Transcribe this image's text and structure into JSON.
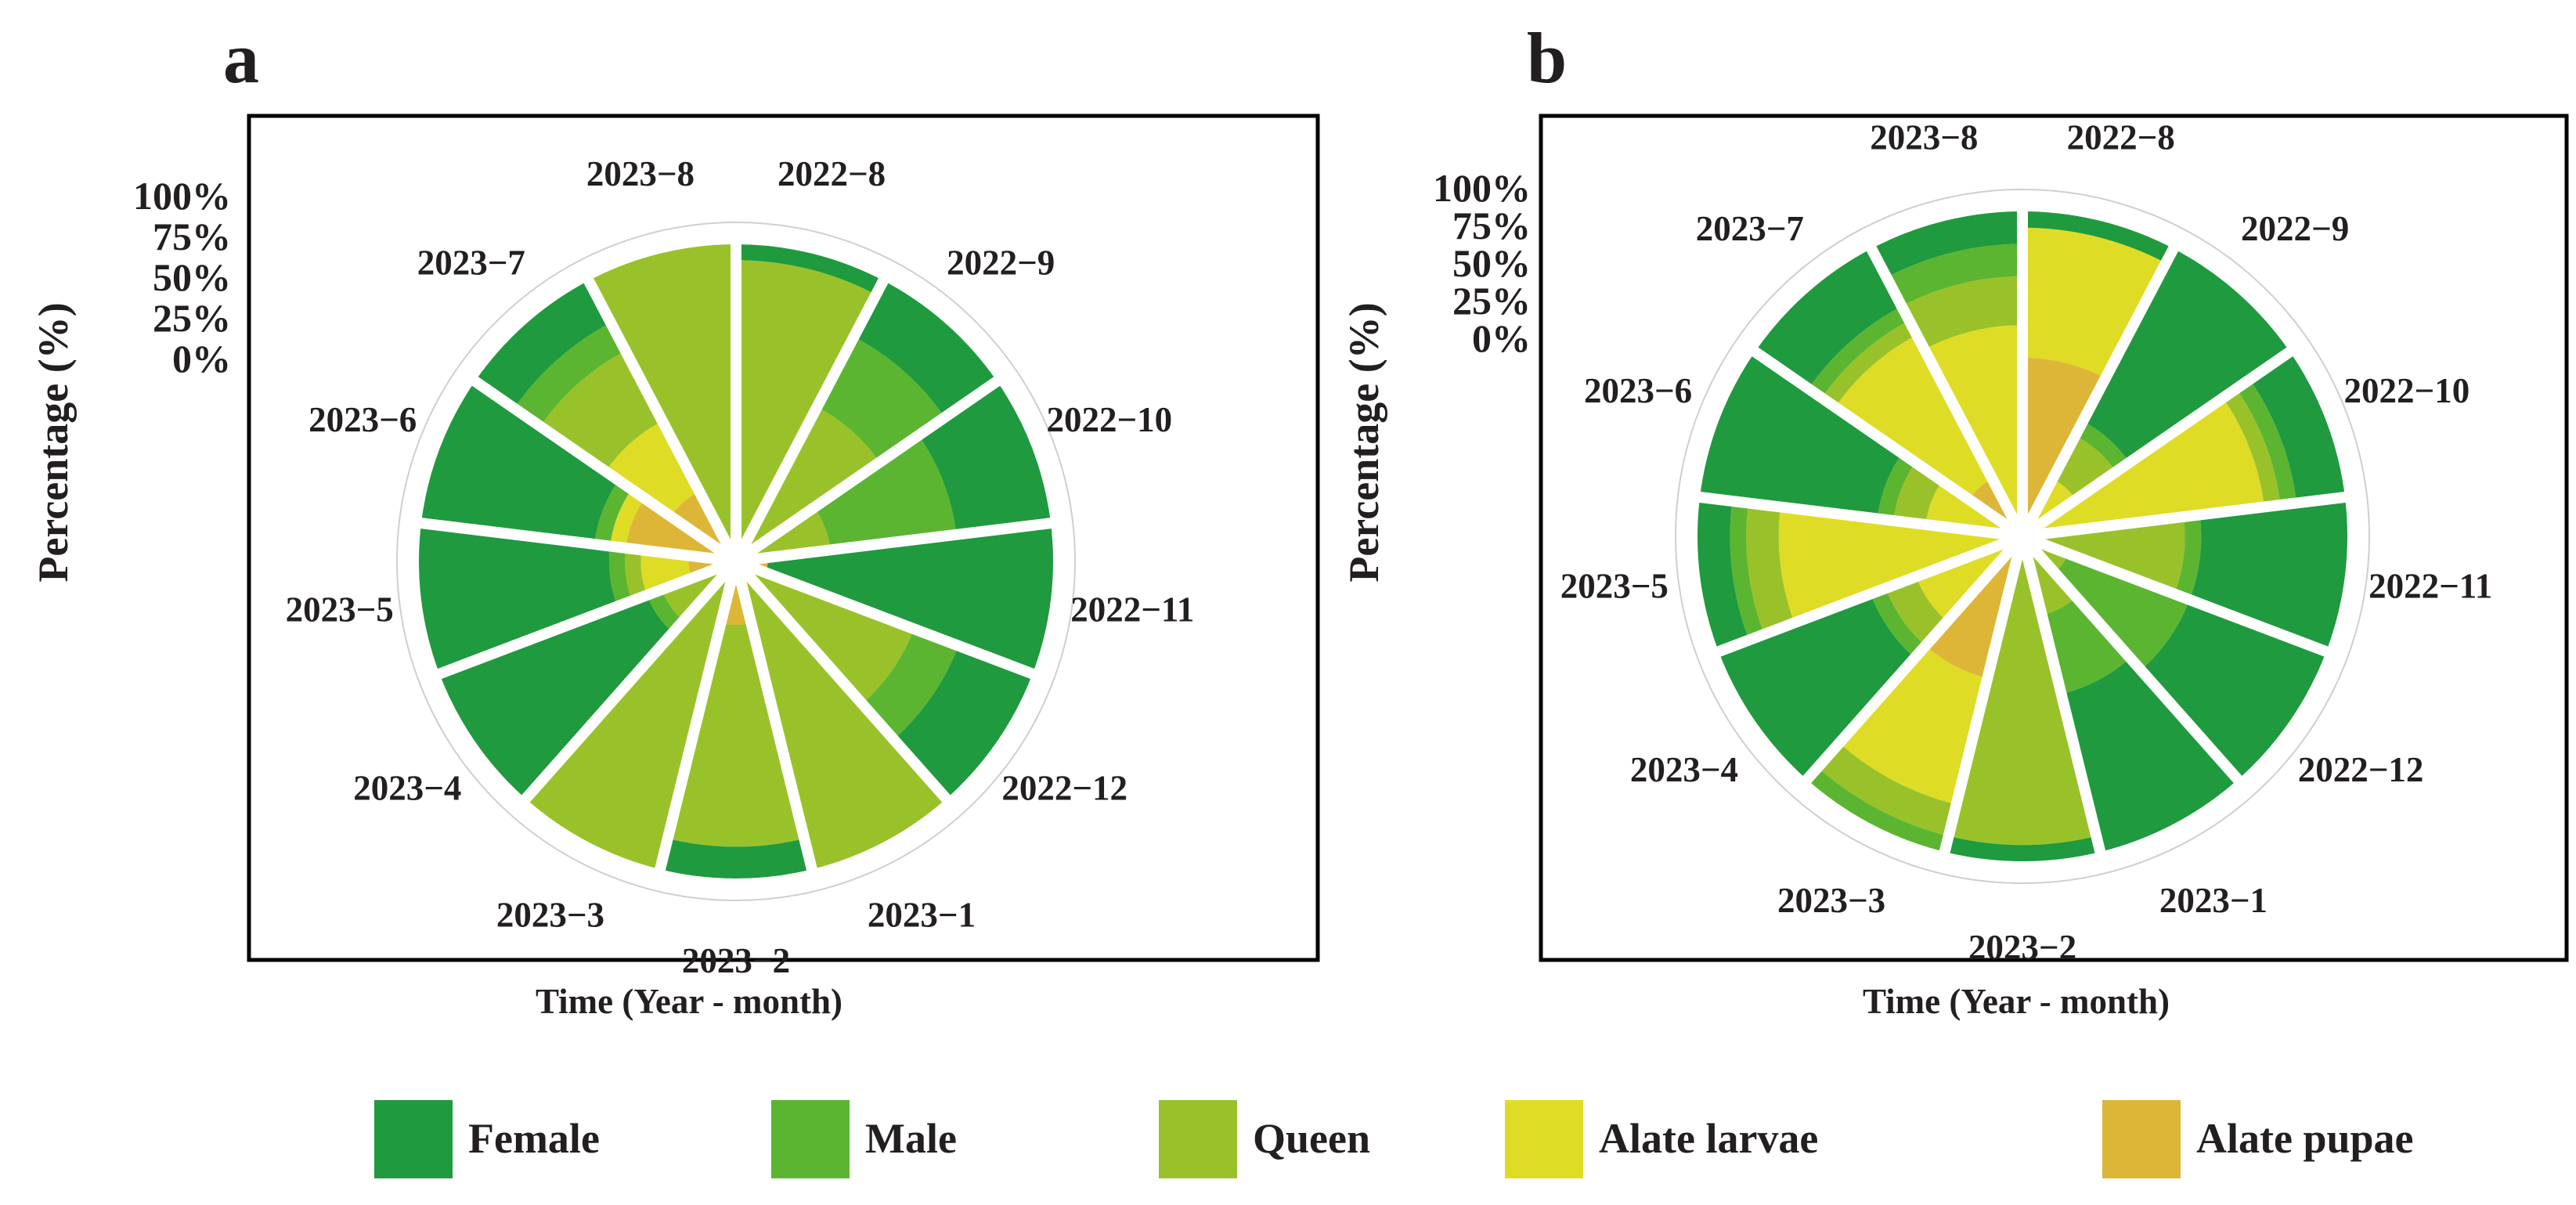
{
  "chart_data": [
    {
      "panel_label": "a",
      "type": "polar-stacked-bar",
      "xlabel": "Time (Year - month)",
      "ylabel": "Percentage (%)",
      "rlim": [
        0,
        100
      ],
      "r_ticks": [
        "100%",
        "75%",
        "50%",
        "25%",
        "0%"
      ],
      "categories": [
        "2022−8",
        "2022−9",
        "2022−10",
        "2022−11",
        "2022−12",
        "2023−1",
        "2023−2",
        "2023−3",
        "2023−4",
        "2023−5",
        "2023−6",
        "2023−7",
        "2023−8"
      ],
      "series": [
        {
          "name": "Alate pupae",
          "values": [
            0,
            0,
            0,
            10,
            0,
            0,
            20,
            5,
            0,
            15,
            35,
            25,
            0
          ]
        },
        {
          "name": "Alate larvae",
          "values": [
            0,
            0,
            0,
            0,
            0,
            0,
            0,
            0,
            0,
            15,
            5,
            25,
            0
          ]
        },
        {
          "name": "Queen",
          "values": [
            95,
            55,
            30,
            0,
            60,
            100,
            70,
            95,
            25,
            5,
            0,
            25,
            100
          ]
        },
        {
          "name": "Male",
          "values": [
            0,
            25,
            40,
            0,
            15,
            0,
            0,
            0,
            5,
            5,
            5,
            10,
            0
          ]
        },
        {
          "name": "Female",
          "values": [
            5,
            20,
            30,
            90,
            25,
            0,
            10,
            0,
            70,
            60,
            55,
            15,
            0
          ]
        }
      ]
    },
    {
      "panel_label": "b",
      "type": "polar-stacked-bar",
      "xlabel": "Time (Year - month)",
      "ylabel": "Percentage (%)",
      "rlim": [
        0,
        100
      ],
      "r_ticks": [
        "100%",
        "75%",
        "50%",
        "25%",
        "0%"
      ],
      "categories": [
        "2022−8",
        "2022−9",
        "2022−10",
        "2022−11",
        "2022−12",
        "2023−1",
        "2023−2",
        "2023−3",
        "2023−4",
        "2023−5",
        "2023−6",
        "2023−7",
        "2023−8"
      ],
      "series": [
        {
          "name": "Alate pupae",
          "values": [
            55,
            0,
            0,
            0,
            0,
            5,
            5,
            45,
            5,
            0,
            5,
            20,
            5
          ]
        },
        {
          "name": "Alate larvae",
          "values": [
            40,
            20,
            75,
            5,
            0,
            0,
            0,
            40,
            30,
            75,
            25,
            50,
            60
          ]
        },
        {
          "name": "Queen",
          "values": [
            0,
            15,
            5,
            45,
            15,
            20,
            90,
            10,
            10,
            10,
            10,
            5,
            15
          ]
        },
        {
          "name": "Male",
          "values": [
            0,
            5,
            5,
            5,
            40,
            25,
            0,
            5,
            5,
            5,
            5,
            5,
            10
          ]
        },
        {
          "name": "Female",
          "values": [
            5,
            60,
            15,
            45,
            45,
            50,
            5,
            0,
            50,
            10,
            55,
            20,
            10
          ]
        }
      ]
    }
  ],
  "legend": [
    {
      "label": "Female",
      "color": "#1f9a3e"
    },
    {
      "label": "Male",
      "color": "#5bb531"
    },
    {
      "label": "Queen",
      "color": "#99c22a"
    },
    {
      "label": "Alate larvae",
      "color": "#dfdc26"
    },
    {
      "label": "Alate pupae",
      "color": "#deb637"
    }
  ]
}
